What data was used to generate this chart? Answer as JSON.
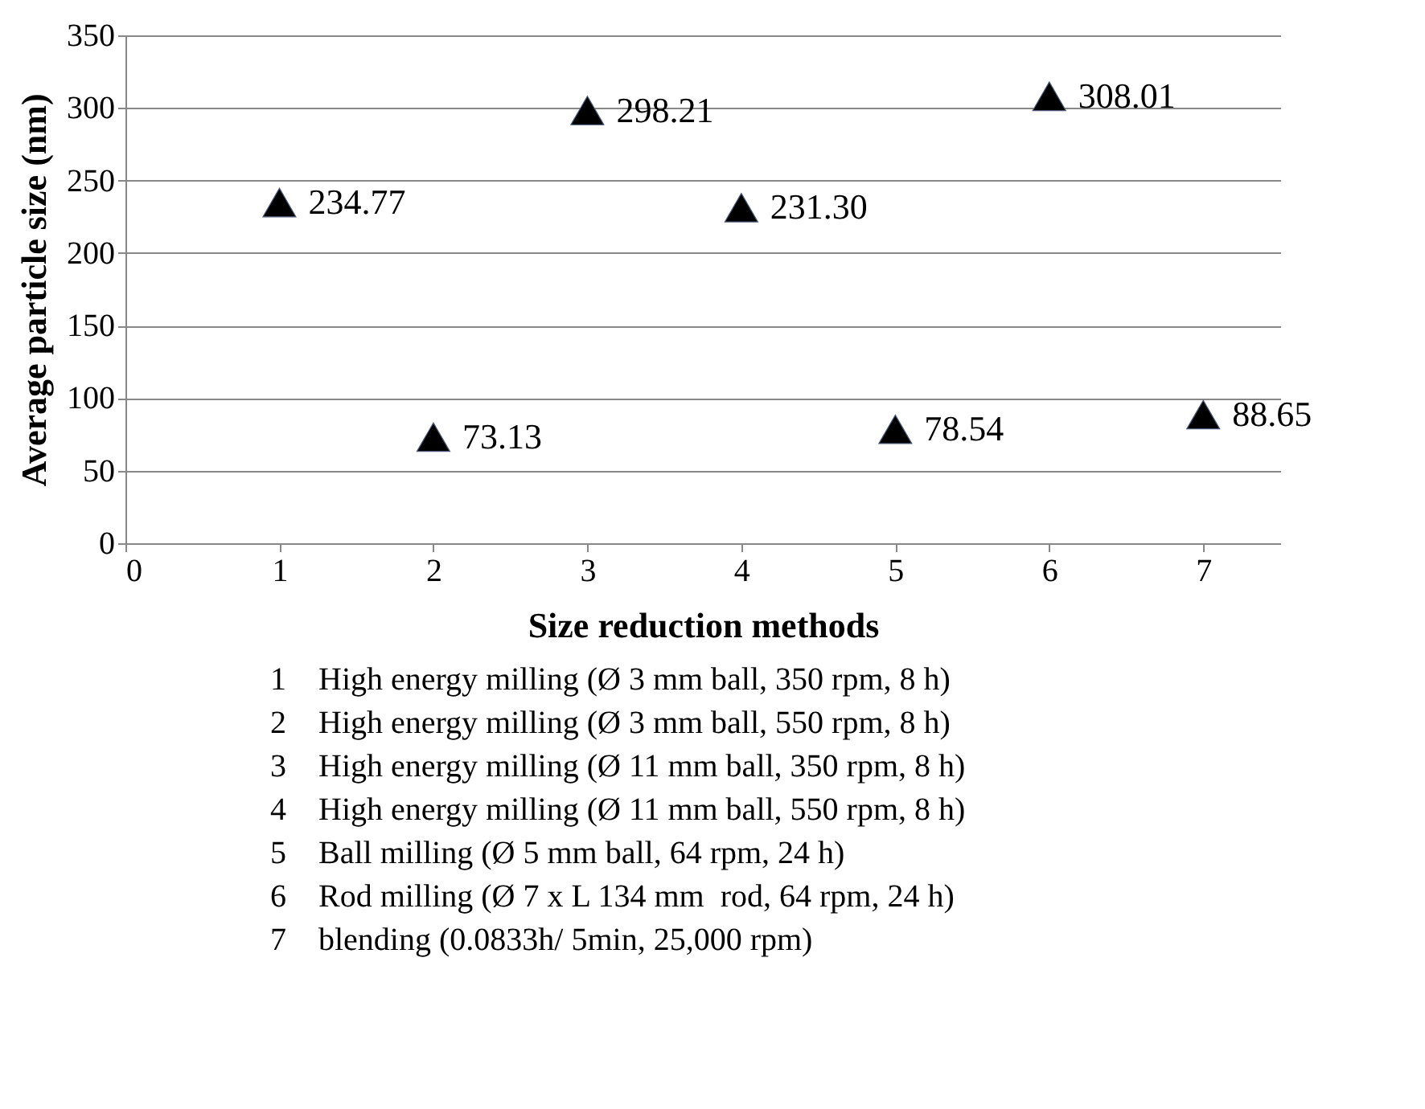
{
  "chart_data": {
    "type": "scatter",
    "xlabel": "Size reduction methods",
    "ylabel": "Average particle size (nm)",
    "x": [
      1,
      2,
      3,
      4,
      5,
      6,
      7
    ],
    "series": [
      {
        "color": "#000000",
        "values": [
          234.77,
          73.13,
          298.21,
          231.3,
          78.54,
          308.01,
          88.65
        ],
        "value_labels": [
          "234.77",
          "73.13",
          "298.21",
          "231.30",
          "78.54",
          "308.01",
          "88.65"
        ]
      }
    ],
    "xlim": [
      0,
      7.5
    ],
    "xticks": [
      0,
      1,
      2,
      3,
      4,
      5,
      6,
      7
    ],
    "ylim": [
      0,
      350
    ],
    "yticks": [
      0,
      50,
      100,
      150,
      200,
      250,
      300,
      350
    ],
    "grid": "y",
    "marker": "triangle",
    "legend": false,
    "annotations": [
      "1    High energy milling (Ø 3 mm ball, 350 rpm, 8 h)",
      "2    High energy milling (Ø 3 mm ball, 550 rpm, 8 h)",
      "3    High energy milling (Ø 11 mm ball, 350 rpm, 8 h)",
      "4    High energy milling (Ø 11 mm ball, 550 rpm, 8 h)",
      "5    Ball milling (Ø 5 mm ball, 64 rpm, 24 h)",
      "6    Rod milling (Ø 7 x L 134 mm  rod, 64 rpm, 24 h)",
      "7    blending (0.0833h/ 5min, 25,000 rpm)"
    ]
  }
}
